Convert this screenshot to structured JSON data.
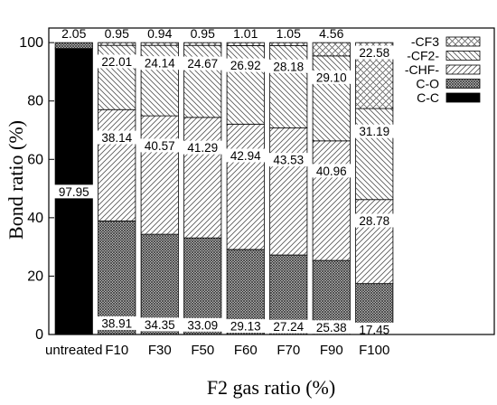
{
  "chart_data": {
    "type": "bar",
    "stacked": true,
    "categories": [
      "untreated",
      "F10",
      "F30",
      "F50",
      "F60",
      "F70",
      "F90",
      "F100"
    ],
    "series": [
      {
        "name": "C-C",
        "pattern": "solid-black",
        "values": [
          97.95,
          0,
          0,
          0,
          0,
          0,
          0,
          0
        ]
      },
      {
        "name": "C-O",
        "pattern": "dense-cross",
        "values": [
          2.05,
          38.91,
          34.35,
          33.09,
          29.13,
          27.24,
          25.38,
          17.45
        ]
      },
      {
        "name": "-CHF-",
        "pattern": "diagonal-right",
        "values": [
          0,
          38.14,
          40.57,
          41.29,
          42.94,
          43.53,
          40.96,
          28.78
        ]
      },
      {
        "name": "-CF2-",
        "pattern": "diagonal-left",
        "values": [
          0,
          22.01,
          24.14,
          24.67,
          26.92,
          28.18,
          29.1,
          31.19
        ]
      },
      {
        "name": "-CF3",
        "pattern": "sparse-cross",
        "values": [
          0,
          0.95,
          0.94,
          0.95,
          1.01,
          1.05,
          4.56,
          22.58
        ]
      }
    ],
    "top_labels": [
      "2.05",
      "0.95",
      "0.94",
      "0.95",
      "1.01",
      "1.05",
      "4.56",
      ""
    ],
    "segment_labels": [
      {
        "category": "untreated",
        "series": "C-C",
        "text": "97.95"
      },
      {
        "category": "F10",
        "series": "C-O",
        "text": "38.91"
      },
      {
        "category": "F10",
        "series": "-CHF-",
        "text": "38.14"
      },
      {
        "category": "F10",
        "series": "-CF2-",
        "text": "22.01"
      },
      {
        "category": "F30",
        "series": "C-O",
        "text": "34.35"
      },
      {
        "category": "F30",
        "series": "-CHF-",
        "text": "40.57"
      },
      {
        "category": "F30",
        "series": "-CF2-",
        "text": "24.14"
      },
      {
        "category": "F50",
        "series": "C-O",
        "text": "33.09"
      },
      {
        "category": "F50",
        "series": "-CHF-",
        "text": "41.29"
      },
      {
        "category": "F50",
        "series": "-CF2-",
        "text": "24.67"
      },
      {
        "category": "F60",
        "series": "C-O",
        "text": "29.13"
      },
      {
        "category": "F60",
        "series": "-CHF-",
        "text": "42.94"
      },
      {
        "category": "F60",
        "series": "-CF2-",
        "text": "26.92"
      },
      {
        "category": "F70",
        "series": "C-O",
        "text": "27.24"
      },
      {
        "category": "F70",
        "series": "-CHF-",
        "text": "43.53"
      },
      {
        "category": "F70",
        "series": "-CF2-",
        "text": "28.18"
      },
      {
        "category": "F90",
        "series": "C-O",
        "text": "25.38"
      },
      {
        "category": "F90",
        "series": "-CHF-",
        "text": "40.96"
      },
      {
        "category": "F90",
        "series": "-CF2-",
        "text": "29.10"
      },
      {
        "category": "F100",
        "series": "C-O",
        "text": "17.45"
      },
      {
        "category": "F100",
        "series": "-CHF-",
        "text": "28.78"
      },
      {
        "category": "F100",
        "series": "-CF2-",
        "text": "31.19"
      },
      {
        "category": "F100",
        "series": "-CF3",
        "text": "22.58"
      }
    ],
    "legend": [
      "-CF3",
      "-CF2-",
      "-CHF-",
      "C-O",
      "C-C"
    ],
    "legend_placement": "top-right",
    "xlabel": "F2 gas ratio (%)",
    "ylabel": "Bond ratio (%)",
    "ylim": [
      0,
      105
    ],
    "yticks": [
      0,
      20,
      40,
      60,
      80,
      100
    ],
    "grid": false
  }
}
